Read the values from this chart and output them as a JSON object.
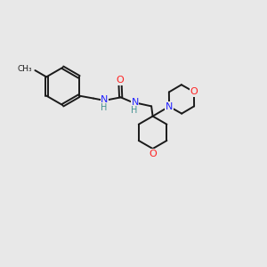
{
  "background_color": "#e8e8e8",
  "bond_color": "#1a1a1a",
  "N_color": "#2020ff",
  "O_color": "#ff2020",
  "H_color": "#409090",
  "figsize": [
    3.0,
    3.0
  ],
  "dpi": 100,
  "xlim": [
    0,
    10
  ],
  "ylim": [
    0,
    10
  ]
}
